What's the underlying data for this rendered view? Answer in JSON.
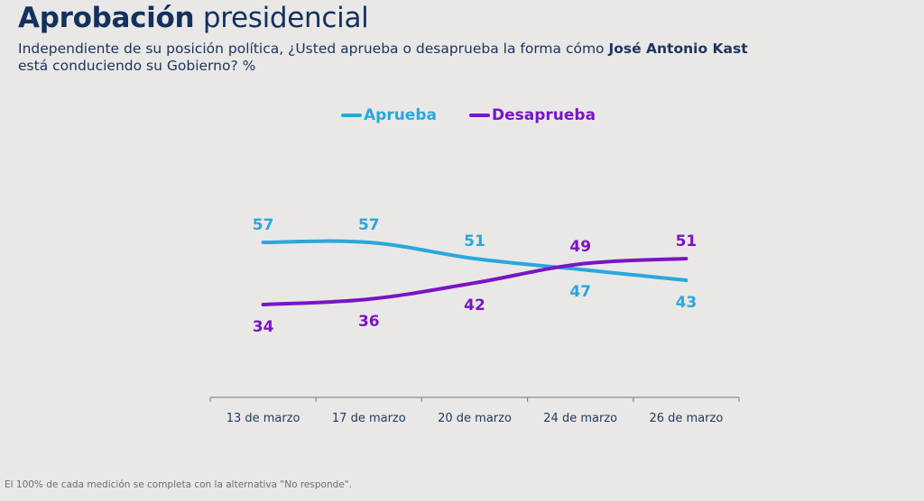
{
  "header": {
    "title_bold": "Aprobación",
    "title_regular": "presidencial",
    "subtitle_part1": "Independiente de su posición política, ¿Usted aprueba o desaprueba la forma cómo ",
    "subtitle_bold": "José Antonio Kast",
    "subtitle_part2": "está conduciendo su Gobierno? %"
  },
  "footnote": "El 100% de cada medición se completa con la alternativa \"No responde\".",
  "colors": {
    "aprueba": "#2aa7dc",
    "desaprueba": "#7a14c4",
    "title": "#13305e",
    "axis": "#8a8a8a",
    "background": "#e9e8e6"
  },
  "chart_data": {
    "type": "line",
    "title": "Aprobación presidencial",
    "xlabel": "",
    "ylabel": "%",
    "categories": [
      "13 de marzo",
      "17 de marzo",
      "20 de marzo",
      "24 de marzo",
      "26 de marzo"
    ],
    "series": [
      {
        "name": "Aprueba",
        "color": "#2aa7dc",
        "values": [
          57,
          57,
          51,
          47,
          43
        ],
        "label_position": [
          "above",
          "above",
          "above",
          "below",
          "below"
        ]
      },
      {
        "name": "Desaprueba",
        "color": "#7a14c4",
        "values": [
          34,
          36,
          42,
          49,
          51
        ],
        "label_position": [
          "below",
          "below",
          "below",
          "above",
          "above"
        ]
      }
    ],
    "legend_position": "top-center",
    "grid": false,
    "y_axis_visible": false,
    "smooth": true
  }
}
